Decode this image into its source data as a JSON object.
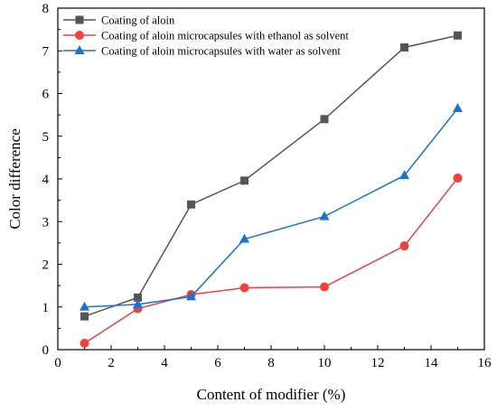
{
  "chart_data": {
    "type": "line",
    "title": "",
    "xlabel": "Content of modifier (%)",
    "ylabel": "Color difference",
    "xlim": [
      0,
      16
    ],
    "ylim": [
      0,
      8
    ],
    "xticks": [
      0,
      2,
      4,
      6,
      8,
      10,
      12,
      14,
      16
    ],
    "yticks": [
      0,
      1,
      2,
      3,
      4,
      5,
      6,
      7,
      8
    ],
    "grid": false,
    "legend_position": "top-left",
    "x": [
      1,
      3,
      5,
      7,
      10,
      13,
      15
    ],
    "series": [
      {
        "name": "Coating of aloin",
        "color": "#555555",
        "marker": "square",
        "values": [
          0.78,
          1.22,
          3.4,
          3.96,
          5.4,
          7.08,
          7.36
        ]
      },
      {
        "name": "Coating of aloin microcapsules with ethanol as solvent",
        "color": "#f04040",
        "marker": "circle",
        "values": [
          0.15,
          0.96,
          1.29,
          1.45,
          1.47,
          2.43,
          4.02
        ]
      },
      {
        "name": "Coating of aloin microcapsules with water as solvent",
        "color": "#1a73d2",
        "marker": "triangle",
        "values": [
          1.0,
          1.06,
          1.24,
          2.59,
          3.12,
          4.08,
          5.65
        ]
      }
    ]
  }
}
